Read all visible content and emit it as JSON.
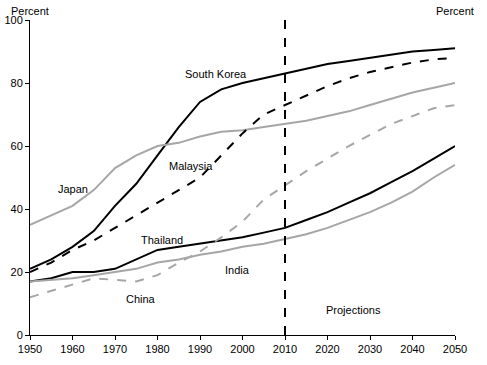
{
  "chart_data": {
    "type": "line",
    "ylabel": "Percent",
    "y2label": "Percent",
    "annotations": [
      "Projections"
    ],
    "projection_start": 2010,
    "x": [
      1950,
      1955,
      1960,
      1965,
      1970,
      1975,
      1980,
      1985,
      1990,
      1995,
      2000,
      2005,
      2010,
      2015,
      2020,
      2025,
      2030,
      2035,
      2040,
      2045,
      2050
    ],
    "xlim": [
      1950,
      2050
    ],
    "xticks": [
      1950,
      1960,
      1970,
      1980,
      1990,
      2000,
      2010,
      2020,
      2030,
      2040,
      2050
    ],
    "ylim": [
      0,
      100
    ],
    "yticks": [
      0,
      20,
      40,
      60,
      80,
      100
    ],
    "y2lim": [
      0,
      100
    ],
    "y2ticks": [
      0,
      20,
      40,
      60,
      80,
      100
    ],
    "grid": false,
    "series": [
      {
        "name": "South Korea",
        "color": "#000000",
        "line_style": "solid",
        "values": [
          21,
          24,
          28,
          33,
          41,
          48,
          57,
          66,
          74,
          78,
          80,
          81.5,
          83,
          84.5,
          86,
          87,
          88,
          89,
          90,
          90.5,
          91
        ]
      },
      {
        "name": "Japan",
        "color": "#a6a6a6",
        "line_style": "solid",
        "values": [
          35,
          38,
          41,
          46,
          53,
          57,
          60,
          61,
          63,
          64.5,
          65,
          66,
          67,
          68,
          69.5,
          71,
          73,
          75,
          77,
          78.5,
          80
        ]
      },
      {
        "name": "Malaysia",
        "color": "#000000",
        "line_style": "dashed",
        "values": [
          20,
          23,
          27,
          30,
          34,
          38,
          42,
          46,
          50,
          57,
          64,
          70,
          73,
          76,
          79,
          81.5,
          83.5,
          85,
          86.5,
          87.5,
          88
        ]
      },
      {
        "name": "Thailand",
        "color": "#000000",
        "line_style": "solid",
        "values": [
          17,
          18,
          20,
          20,
          21,
          24,
          27,
          28,
          29,
          30,
          31,
          32.5,
          34,
          36.5,
          39,
          42,
          45,
          48.5,
          52,
          56,
          60
        ]
      },
      {
        "name": "India",
        "color": "#a6a6a6",
        "line_style": "solid",
        "values": [
          17,
          17.5,
          18,
          19,
          20,
          21,
          23,
          24,
          25.5,
          26.5,
          28,
          29,
          30.5,
          32,
          34,
          36.5,
          39,
          42,
          45.5,
          50,
          54
        ]
      },
      {
        "name": "China",
        "color": "#a6a6a6",
        "line_style": "dashed",
        "values": [
          12,
          14,
          16,
          18,
          17.5,
          17,
          19,
          23,
          26.5,
          31,
          36,
          43,
          47.5,
          52,
          56,
          60,
          63.5,
          67,
          69.5,
          72,
          73
        ]
      }
    ]
  }
}
